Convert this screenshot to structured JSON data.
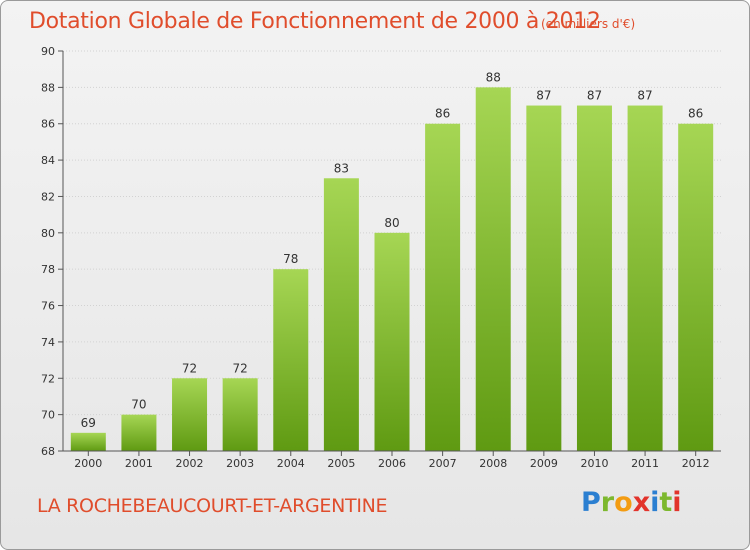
{
  "header": {
    "title": "Dotation Globale de Fonctionnement de 2000 à 2012",
    "unit": "(en milliers d'€)"
  },
  "footer": {
    "commune": "LA ROCHEBEAUCOURT-ET-ARGENTINE",
    "logo_text": "Proxiti",
    "logo_letters": [
      "P",
      "r",
      "o",
      "x",
      "i",
      "t",
      "i"
    ],
    "logo_colors": [
      "#2b7fd1",
      "#7db82e",
      "#f39c12",
      "#e2332b",
      "#2b7fd1",
      "#7db82e",
      "#e2332b"
    ]
  },
  "colors": {
    "title": "#e04d2c",
    "bar_top": "#a6d654",
    "bar_bottom": "#5f9a12",
    "grid": "#d2d2d2",
    "axis": "#555555",
    "text": "#333333"
  },
  "chart_data": {
    "type": "bar",
    "title": "Dotation Globale de Fonctionnement de 2000 à 2012",
    "subtitle": "(en milliers d'€)",
    "xlabel": "",
    "ylabel": "",
    "categories": [
      "2000",
      "2001",
      "2002",
      "2003",
      "2004",
      "2005",
      "2006",
      "2007",
      "2008",
      "2009",
      "2010",
      "2011",
      "2012"
    ],
    "values": [
      69,
      70,
      72,
      72,
      78,
      83,
      80,
      86,
      88,
      87,
      87,
      87,
      86
    ],
    "ylim": [
      68,
      90
    ],
    "yticks": [
      68,
      70,
      72,
      74,
      76,
      78,
      80,
      82,
      84,
      86,
      88,
      90
    ],
    "grid": true,
    "legend": "none"
  }
}
